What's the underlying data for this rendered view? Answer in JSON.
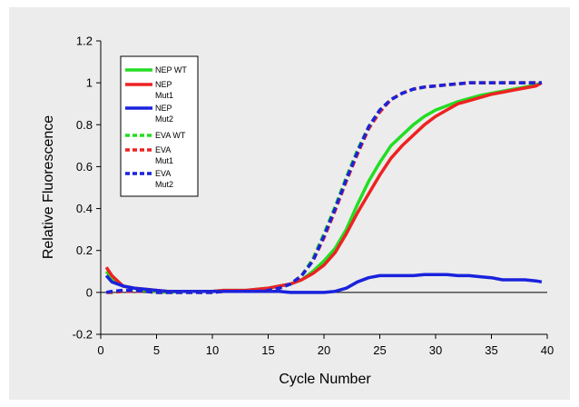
{
  "chart_data": {
    "type": "line",
    "xlabel": "Cycle Number",
    "ylabel": "Relative Fluorescence",
    "xlim": [
      0,
      40
    ],
    "ylim": [
      -0.2,
      1.2
    ],
    "x_ticks": [
      "0",
      "5",
      "10",
      "15",
      "20",
      "25",
      "30",
      "35",
      "40"
    ],
    "y_ticks": [
      "-0.2",
      "0",
      "0.2",
      "0.4",
      "0.6",
      "0.8",
      "1",
      "1.2"
    ],
    "grid": false,
    "legend_position": "top-left",
    "series": [
      {
        "name": "NEP WT",
        "color": "#22dd22",
        "dash": "solid",
        "x": [
          0.5,
          1,
          2,
          3,
          4,
          5,
          6,
          7,
          8,
          9,
          10,
          11,
          12,
          13,
          14,
          15,
          16,
          17,
          18,
          19,
          20,
          21,
          22,
          23,
          24,
          25,
          26,
          27,
          28,
          29,
          30,
          31,
          32,
          33,
          34,
          35,
          36,
          37,
          38,
          39,
          39.5
        ],
        "y": [
          0.1,
          0.07,
          0.03,
          0.02,
          0.01,
          0.005,
          0.0,
          0.005,
          0.005,
          0.005,
          0.005,
          0.01,
          0.01,
          0.01,
          0.015,
          0.02,
          0.03,
          0.04,
          0.06,
          0.1,
          0.15,
          0.21,
          0.3,
          0.42,
          0.53,
          0.62,
          0.7,
          0.75,
          0.8,
          0.84,
          0.87,
          0.89,
          0.91,
          0.925,
          0.94,
          0.95,
          0.96,
          0.97,
          0.98,
          0.99,
          1.0
        ]
      },
      {
        "name": "NEP Mut1",
        "color": "#ee2222",
        "dash": "solid",
        "x": [
          0.5,
          1,
          2,
          3,
          4,
          5,
          6,
          7,
          8,
          9,
          10,
          11,
          12,
          13,
          14,
          15,
          16,
          17,
          18,
          19,
          20,
          21,
          22,
          23,
          24,
          25,
          26,
          27,
          28,
          29,
          30,
          31,
          32,
          33,
          34,
          35,
          36,
          37,
          38,
          39,
          39.5
        ],
        "y": [
          0.12,
          0.08,
          0.03,
          0.02,
          0.015,
          0.01,
          0.005,
          0.005,
          0.005,
          0.005,
          0.005,
          0.01,
          0.01,
          0.01,
          0.015,
          0.02,
          0.03,
          0.04,
          0.06,
          0.09,
          0.13,
          0.19,
          0.28,
          0.38,
          0.47,
          0.56,
          0.64,
          0.7,
          0.75,
          0.8,
          0.84,
          0.87,
          0.9,
          0.915,
          0.93,
          0.945,
          0.955,
          0.965,
          0.975,
          0.985,
          1.0
        ]
      },
      {
        "name": "NEP Mut2",
        "color": "#1a22dd",
        "dash": "solid",
        "x": [
          0.5,
          1,
          2,
          3,
          4,
          5,
          6,
          7,
          8,
          9,
          10,
          11,
          12,
          13,
          14,
          15,
          16,
          17,
          18,
          19,
          20,
          21,
          22,
          23,
          24,
          25,
          26,
          27,
          28,
          29,
          30,
          31,
          32,
          33,
          34,
          35,
          36,
          37,
          38,
          39,
          39.5
        ],
        "y": [
          0.08,
          0.05,
          0.03,
          0.02,
          0.015,
          0.01,
          0.005,
          0.005,
          0.005,
          0.005,
          0.005,
          0.005,
          0.005,
          0.005,
          0.005,
          0.005,
          0.005,
          0.0,
          0.0,
          0.0,
          0.0,
          0.005,
          0.02,
          0.05,
          0.07,
          0.08,
          0.08,
          0.08,
          0.08,
          0.085,
          0.085,
          0.085,
          0.08,
          0.08,
          0.075,
          0.07,
          0.06,
          0.06,
          0.06,
          0.055,
          0.05
        ]
      },
      {
        "name": "EVA WT",
        "color": "#22dd22",
        "dash": "dashed",
        "x": [
          0.5,
          1,
          2,
          3,
          4,
          5,
          6,
          7,
          8,
          9,
          10,
          11,
          12,
          13,
          14,
          15,
          16,
          17,
          18,
          19,
          20,
          21,
          22,
          23,
          24,
          25,
          26,
          27,
          28,
          29,
          30,
          31,
          32,
          33,
          34,
          35,
          36,
          37,
          38,
          39,
          39.5
        ],
        "y": [
          0.0,
          0.0,
          0.005,
          0.005,
          0.005,
          0.0,
          0.0,
          0.0,
          0.0,
          0.0,
          0.0,
          0.005,
          0.005,
          0.005,
          0.005,
          0.01,
          0.02,
          0.04,
          0.08,
          0.16,
          0.28,
          0.41,
          0.55,
          0.68,
          0.79,
          0.87,
          0.92,
          0.95,
          0.97,
          0.98,
          0.985,
          0.99,
          0.995,
          1.0,
          1.0,
          1.0,
          1.0,
          1.0,
          1.0,
          1.0,
          1.0
        ]
      },
      {
        "name": "EVA Mut1",
        "color": "#ee2222",
        "dash": "dashed",
        "x": [
          0.5,
          1,
          2,
          3,
          4,
          5,
          6,
          7,
          8,
          9,
          10,
          11,
          12,
          13,
          14,
          15,
          16,
          17,
          18,
          19,
          20,
          21,
          22,
          23,
          24,
          25,
          26,
          27,
          28,
          29,
          30,
          31,
          32,
          33,
          34,
          35,
          36,
          37,
          38,
          39,
          39.5
        ],
        "y": [
          0.0,
          0.0,
          0.005,
          0.005,
          0.005,
          0.0,
          0.0,
          0.0,
          0.0,
          0.0,
          0.0,
          0.005,
          0.005,
          0.005,
          0.005,
          0.01,
          0.02,
          0.04,
          0.08,
          0.15,
          0.26,
          0.39,
          0.53,
          0.66,
          0.78,
          0.86,
          0.92,
          0.95,
          0.97,
          0.98,
          0.985,
          0.99,
          0.995,
          1.0,
          1.0,
          1.0,
          1.0,
          1.0,
          1.0,
          1.0,
          1.0
        ]
      },
      {
        "name": "EVA Mut2",
        "color": "#1a22dd",
        "dash": "dashed",
        "x": [
          0.5,
          1,
          2,
          3,
          4,
          5,
          6,
          7,
          8,
          9,
          10,
          11,
          12,
          13,
          14,
          15,
          16,
          17,
          18,
          19,
          20,
          21,
          22,
          23,
          24,
          25,
          26,
          27,
          28,
          29,
          30,
          31,
          32,
          33,
          34,
          35,
          36,
          37,
          38,
          39,
          39.5
        ],
        "y": [
          0.0,
          0.005,
          0.01,
          0.01,
          0.005,
          0.0,
          0.0,
          0.0,
          0.0,
          0.0,
          0.0,
          0.005,
          0.005,
          0.005,
          0.005,
          0.01,
          0.02,
          0.04,
          0.08,
          0.15,
          0.27,
          0.4,
          0.54,
          0.67,
          0.79,
          0.87,
          0.92,
          0.95,
          0.97,
          0.98,
          0.985,
          0.99,
          0.995,
          1.0,
          1.0,
          1.0,
          1.0,
          1.0,
          1.0,
          1.0,
          1.0
        ]
      }
    ],
    "legend_entries": [
      {
        "lines": [
          "NEP WT"
        ],
        "color": "#22dd22",
        "dash": "solid"
      },
      {
        "lines": [
          "NEP",
          "Mut1"
        ],
        "color": "#ee2222",
        "dash": "solid"
      },
      {
        "lines": [
          "NEP",
          "Mut2"
        ],
        "color": "#1a22dd",
        "dash": "solid"
      },
      {
        "lines": [
          "EVA WT"
        ],
        "color": "#22dd22",
        "dash": "dashed"
      },
      {
        "lines": [
          "EVA",
          "Mut1"
        ],
        "color": "#ee2222",
        "dash": "dashed"
      },
      {
        "lines": [
          "EVA",
          "Mut2"
        ],
        "color": "#1a22dd",
        "dash": "dashed"
      }
    ]
  }
}
